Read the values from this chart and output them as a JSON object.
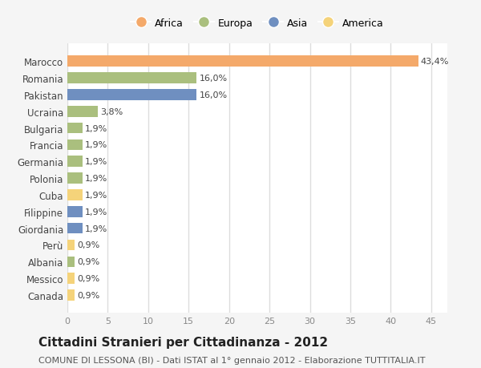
{
  "countries": [
    "Marocco",
    "Romania",
    "Pakistan",
    "Ucraina",
    "Bulgaria",
    "Francia",
    "Germania",
    "Polonia",
    "Cuba",
    "Filippine",
    "Giordania",
    "Perù",
    "Albania",
    "Messico",
    "Canada"
  ],
  "values": [
    43.4,
    16.0,
    16.0,
    3.8,
    1.9,
    1.9,
    1.9,
    1.9,
    1.9,
    1.9,
    1.9,
    0.9,
    0.9,
    0.9,
    0.9
  ],
  "labels": [
    "43,4%",
    "16,0%",
    "16,0%",
    "3,8%",
    "1,9%",
    "1,9%",
    "1,9%",
    "1,9%",
    "1,9%",
    "1,9%",
    "1,9%",
    "0,9%",
    "0,9%",
    "0,9%",
    "0,9%"
  ],
  "continents": [
    "Africa",
    "Europa",
    "Asia",
    "Europa",
    "Europa",
    "Europa",
    "Europa",
    "Europa",
    "America",
    "Asia",
    "Asia",
    "America",
    "Europa",
    "America",
    "America"
  ],
  "colors": {
    "Africa": "#F4A96A",
    "Europa": "#AABF7E",
    "Asia": "#6F8FC0",
    "America": "#F5D37A"
  },
  "legend_order": [
    "Africa",
    "Europa",
    "Asia",
    "America"
  ],
  "title": "Cittadini Stranieri per Cittadinanza - 2012",
  "subtitle": "COMUNE DI LESSONA (BI) - Dati ISTAT al 1° gennaio 2012 - Elaborazione TUTTITALIA.IT",
  "xlim": [
    0,
    47
  ],
  "xticks": [
    0,
    5,
    10,
    15,
    20,
    25,
    30,
    35,
    40,
    45
  ],
  "background_color": "#f5f5f5",
  "plot_background": "#ffffff",
  "grid_color": "#dddddd",
  "title_fontsize": 11,
  "subtitle_fontsize": 8,
  "bar_height": 0.65
}
